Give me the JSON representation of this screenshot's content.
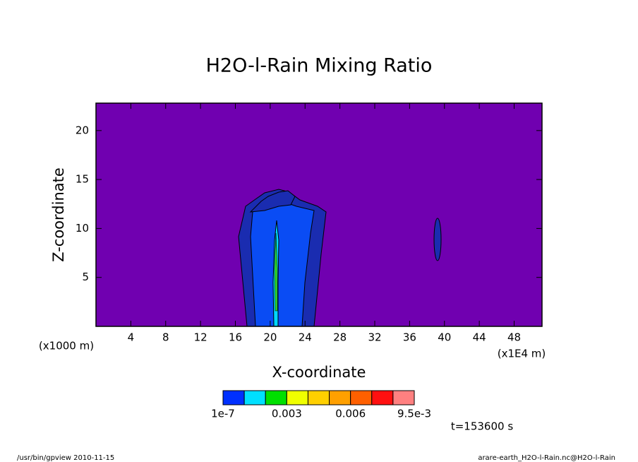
{
  "chart_data": {
    "type": "contour",
    "title": "H2O-l-Rain Mixing Ratio",
    "x_label": "X-coordinate",
    "y_label": "Z-coordinate",
    "x_unit": "(x1E4 m)",
    "y_unit": "(x1000 m)",
    "xlim": [
      0,
      51.2
    ],
    "ylim": [
      0,
      22.8
    ],
    "xticks": [
      4,
      8,
      12,
      16,
      20,
      24,
      28,
      32,
      36,
      40,
      44,
      48
    ],
    "yticks": [
      5,
      10,
      15,
      20
    ],
    "background_color": "#7000b0",
    "colorbar": {
      "colors": [
        "#0030ff",
        "#00e0ff",
        "#00e000",
        "#f0ff00",
        "#ffd000",
        "#ffa000",
        "#ff6000",
        "#ff1010",
        "#ff8080"
      ],
      "levels": [
        1e-07,
        null,
        null,
        0.003,
        null,
        null,
        0.006,
        null,
        null,
        {
          "value": 0.0095,
          "label": "9.5e-3"
        }
      ]
    },
    "time_label": "t=153600 s",
    "footer_left": "/usr/bin/gpview  2010-11-15",
    "footer_right": "arare-earth_H2O-l-Rain.nc@H2O-l-Rain"
  }
}
